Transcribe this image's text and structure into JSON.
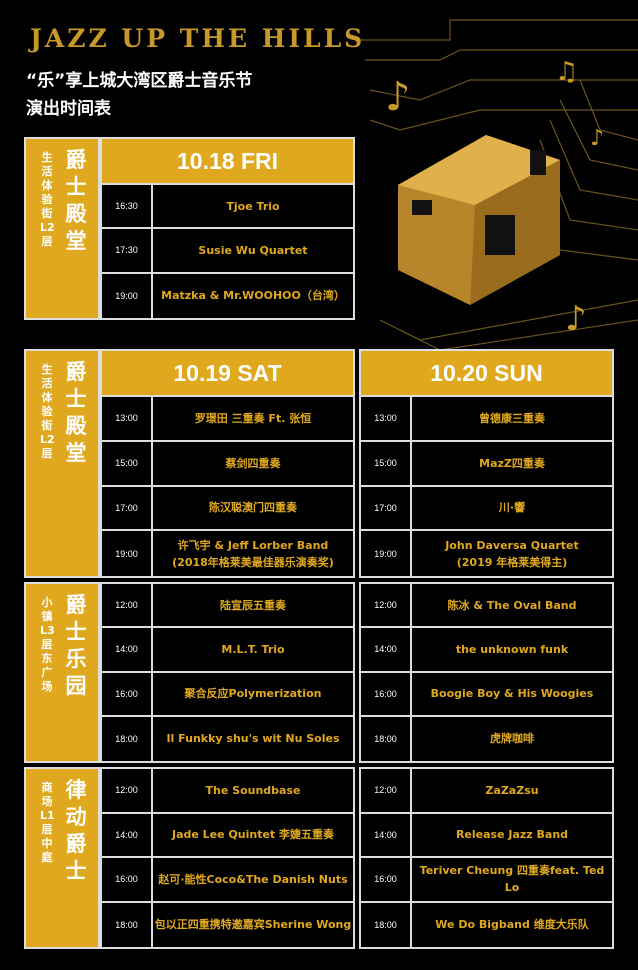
{
  "header": {
    "title": "JAZZ UP THE HILLS",
    "subtitle_line1": "“乐”享上城大湾区爵士音乐节",
    "subtitle_line2": "演出时间表"
  },
  "colors": {
    "gold": "#dfa81f",
    "text_gold": "#e0a820",
    "background": "#000000",
    "border": "#dddddd"
  },
  "sections": [
    {
      "location": "生活体验街L2层",
      "venue": "爵士殿堂",
      "days": [
        {
          "label": "10.18 FRI",
          "slots": [
            {
              "time": "16:30",
              "act": "Tjoe Trio"
            },
            {
              "time": "17:30",
              "act": "Susie Wu Quartet"
            },
            {
              "time": "19:00",
              "act": "Matzka & Mr.WOOHOO（台湾）"
            }
          ]
        }
      ]
    },
    {
      "location": "生活体验街L2层",
      "venue": "爵士殿堂",
      "days": [
        {
          "label": "10.19 SAT",
          "slots": [
            {
              "time": "13:00",
              "act": "罗璟田 三重奏  Ft. 张恒"
            },
            {
              "time": "15:00",
              "act": "蔡剑四重奏"
            },
            {
              "time": "17:00",
              "act": "陈汉聪澳门四重奏"
            },
            {
              "time": "19:00",
              "act": "许飞宇 & Jeff Lorber Band\n(2018年格莱美最佳器乐演奏奖)"
            }
          ]
        },
        {
          "label": "10.20 SUN",
          "slots": [
            {
              "time": "13:00",
              "act": "曾德康三重奏"
            },
            {
              "time": "15:00",
              "act": "MazZ四重奏"
            },
            {
              "time": "17:00",
              "act": "川·響"
            },
            {
              "time": "19:00",
              "act": "John Daversa Quartet\n(2019 年格莱美得主)"
            }
          ]
        }
      ]
    },
    {
      "location": "小镇L3层东广场",
      "venue": "爵士乐园",
      "days": [
        {
          "slots": [
            {
              "time": "12:00",
              "act": "陆宣辰五重奏"
            },
            {
              "time": "14:00",
              "act": "M.L.T. Trio"
            },
            {
              "time": "16:00",
              "act": "聚合反应Polymerization"
            },
            {
              "time": "18:00",
              "act": "Il Funkky shu's wit Nu Soles"
            }
          ]
        },
        {
          "slots": [
            {
              "time": "12:00",
              "act": "陈冰 & The Oval Band"
            },
            {
              "time": "14:00",
              "act": "the unknown funk"
            },
            {
              "time": "16:00",
              "act": "Boogie Boy & His Woogies"
            },
            {
              "time": "18:00",
              "act": "虎牌咖啡"
            }
          ]
        }
      ]
    },
    {
      "location": "商场L1层中庭",
      "venue": "律动爵士",
      "days": [
        {
          "slots": [
            {
              "time": "12:00",
              "act": "The Soundbase"
            },
            {
              "time": "14:00",
              "act": "Jade Lee Quintet 李婕五重奏"
            },
            {
              "time": "16:00",
              "act": "赵可·能性Coco&The Danish Nuts"
            },
            {
              "time": "18:00",
              "act": "包以正四重携特邀嘉宾Sherine Wong"
            }
          ]
        },
        {
          "slots": [
            {
              "time": "12:00",
              "act": "ZaZaZsu"
            },
            {
              "time": "14:00",
              "act": "Release Jazz Band"
            },
            {
              "time": "16:00",
              "act": "Teriver Cheung 四重奏feat. Ted Lo"
            },
            {
              "time": "18:00",
              "act": "We Do Bigband 维度大乐队"
            }
          ]
        }
      ]
    }
  ]
}
